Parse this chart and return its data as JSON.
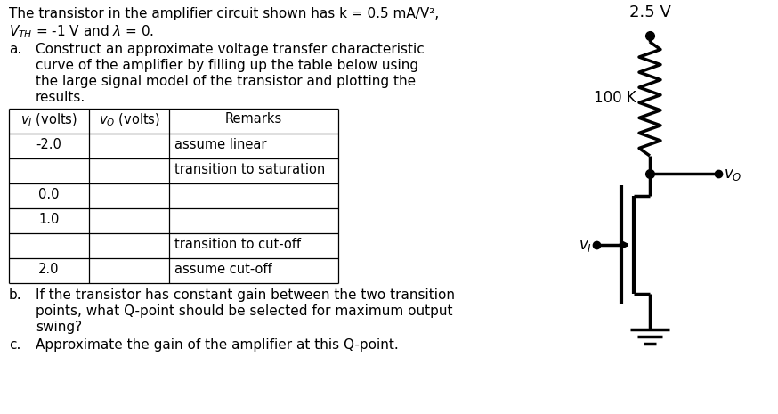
{
  "title_line1": "The transistor in the amplifier circuit shown has k = 0.5 mA/V²,",
  "title_line2_vth": "V",
  "title_line2_rest": " = -1 V and λ = 0.",
  "part_a_label": "a.",
  "part_a1": "Construct an approximate voltage transfer characteristic",
  "part_a2": "curve of the amplifier by filling up the table below using",
  "part_a3": "the large signal model of the transistor and plotting the",
  "part_a4": "results.",
  "part_b_label": "b.",
  "part_b1": "If the transistor has constant gain between the two transition",
  "part_b2": "points, what Q-point should be selected for maximum output",
  "part_b3": "swing?",
  "part_c_label": "c.",
  "part_c1": "Approximate the gain of the amplifier at this Q-point.",
  "table_rows": [
    [
      "-2.0",
      "",
      "assume linear"
    ],
    [
      "",
      "",
      "transition to saturation"
    ],
    [
      "0.0",
      "",
      ""
    ],
    [
      "1.0",
      "",
      ""
    ],
    [
      "",
      "",
      "transition to cut-off"
    ],
    [
      "2.0",
      "",
      "assume cut-off"
    ]
  ],
  "circuit_vdd": "2.5 V",
  "circuit_r": "100 K",
  "bg_color": "#ffffff",
  "text_color": "#000000",
  "lw_circuit": 2.5,
  "fs_main": 11,
  "fs_circuit": 12
}
